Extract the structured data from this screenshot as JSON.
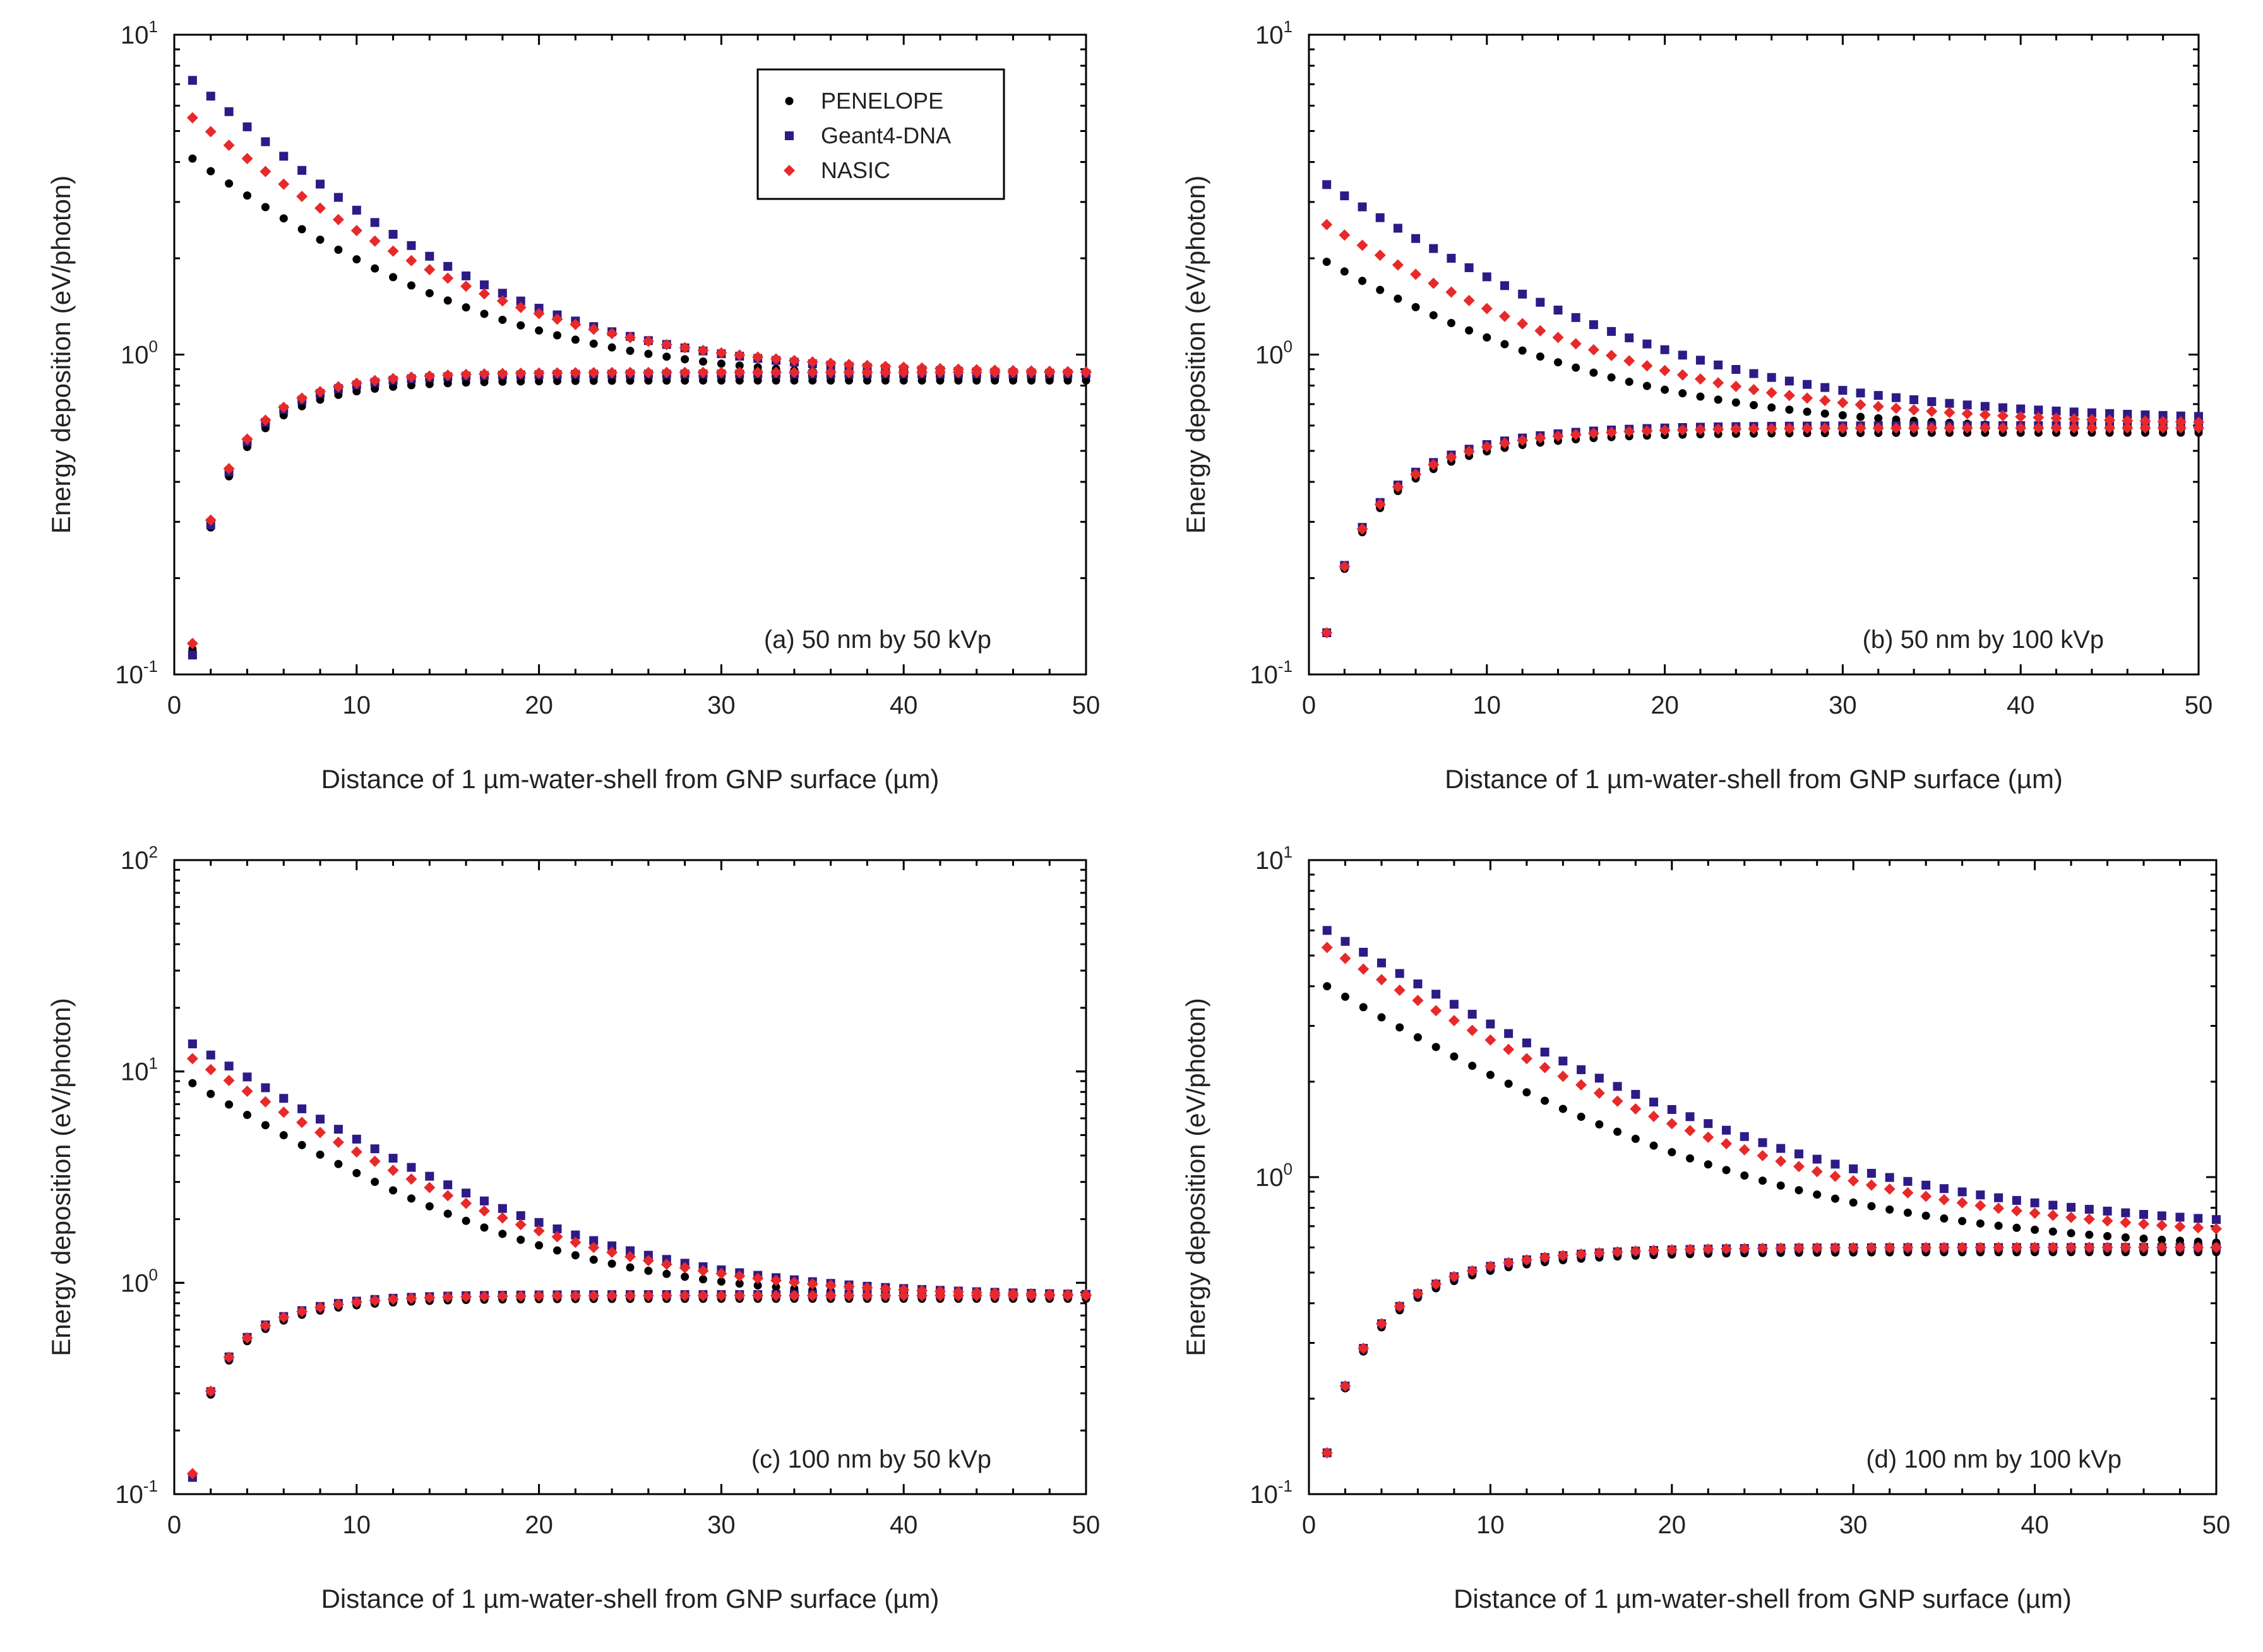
{
  "legend": [
    {
      "name": "PENELOPE",
      "color": "#000000",
      "marker": "circle"
    },
    {
      "name": "Geant4-DNA",
      "color": "#2e1a87",
      "marker": "square"
    },
    {
      "name": "NASIC",
      "color": "#e8292a",
      "marker": "diamond"
    }
  ],
  "chart_data": [
    {
      "type": "scatter",
      "panel_label": "(a) 50 nm by 50 kVp",
      "xlabel": "Distance of 1 µm-water-shell from GNP surface (µm)",
      "ylabel": "Energy deposition (eV/photon)",
      "xlim": [
        0,
        50
      ],
      "ylim": [
        0.1,
        10
      ],
      "yscale": "log",
      "xticks": [
        "0",
        "10",
        "20",
        "30",
        "40",
        "50"
      ],
      "yticks": [
        {
          "base": "10",
          "exp": "-1"
        },
        {
          "base": "10",
          "exp": "0"
        },
        {
          "base": "10",
          "exp": "1"
        }
      ],
      "series": [
        {
          "name": "PENELOPE",
          "group": "outer",
          "y0": 4.1,
          "y50": 0.82,
          "k": 0.115
        },
        {
          "name": "Geant4-DNA",
          "group": "outer",
          "y0": 7.2,
          "y50": 0.86,
          "k": 0.13
        },
        {
          "name": "NASIC",
          "group": "outer",
          "y0": 5.5,
          "y50": 0.87,
          "k": 0.12
        },
        {
          "name": "PENELOPE",
          "group": "inner",
          "y0": 0.12,
          "y50": 0.83,
          "k": 0.27
        },
        {
          "name": "Geant4-DNA",
          "group": "inner",
          "y0": 0.115,
          "y50": 0.87,
          "k": 0.27
        },
        {
          "name": "NASIC",
          "group": "inner",
          "y0": 0.125,
          "y50": 0.88,
          "k": 0.27
        }
      ],
      "show_legend": true
    },
    {
      "type": "scatter",
      "panel_label": "(b) 50 nm by 100 kVp",
      "xlabel": "Distance of 1 µm-water-shell from GNP surface (µm)",
      "ylabel": "Energy deposition (eV/photon)",
      "xlim": [
        0,
        50
      ],
      "ylim": [
        0.1,
        10
      ],
      "yscale": "log",
      "xticks": [
        "0",
        "10",
        "20",
        "30",
        "40",
        "50"
      ],
      "yticks": [
        {
          "base": "10",
          "exp": "-1"
        },
        {
          "base": "10",
          "exp": "0"
        },
        {
          "base": "10",
          "exp": "1"
        }
      ],
      "series": [
        {
          "name": "PENELOPE",
          "group": "outer",
          "y0": 1.95,
          "y50": 0.57,
          "k": 0.1
        },
        {
          "name": "Geant4-DNA",
          "group": "outer",
          "y0": 3.4,
          "y50": 0.62,
          "k": 0.1
        },
        {
          "name": "NASIC",
          "group": "outer",
          "y0": 2.55,
          "y50": 0.6,
          "k": 0.1
        },
        {
          "name": "PENELOPE",
          "group": "inner",
          "y0": 0.135,
          "y50": 0.57,
          "k": 0.2
        },
        {
          "name": "Geant4-DNA",
          "group": "inner",
          "y0": 0.135,
          "y50": 0.6,
          "k": 0.2
        },
        {
          "name": "NASIC",
          "group": "inner",
          "y0": 0.135,
          "y50": 0.59,
          "k": 0.2
        }
      ],
      "show_legend": false
    },
    {
      "type": "scatter",
      "panel_label": "(c) 100 nm by 50 kVp",
      "xlabel": "Distance of 1 µm-water-shell from GNP surface (µm)",
      "ylabel": "Energy deposition (eV/photon)",
      "xlim": [
        0,
        50
      ],
      "ylim": [
        0.1,
        100
      ],
      "yscale": "log",
      "xticks": [
        "0",
        "10",
        "20",
        "30",
        "40",
        "50"
      ],
      "yticks": [
        {
          "base": "10",
          "exp": "-1"
        },
        {
          "base": "10",
          "exp": "0"
        },
        {
          "base": "10",
          "exp": "1"
        },
        {
          "base": "10",
          "exp": "2"
        }
      ],
      "series": [
        {
          "name": "PENELOPE",
          "group": "outer",
          "y0": 8.8,
          "y50": 0.83,
          "k": 0.13
        },
        {
          "name": "Geant4-DNA",
          "group": "outer",
          "y0": 13.5,
          "y50": 0.86,
          "k": 0.13
        },
        {
          "name": "NASIC",
          "group": "outer",
          "y0": 11.5,
          "y50": 0.86,
          "k": 0.13
        },
        {
          "name": "PENELOPE",
          "group": "inner",
          "y0": 0.12,
          "y50": 0.84,
          "k": 0.28
        },
        {
          "name": "Geant4-DNA",
          "group": "inner",
          "y0": 0.12,
          "y50": 0.88,
          "k": 0.28
        },
        {
          "name": "NASIC",
          "group": "inner",
          "y0": 0.125,
          "y50": 0.87,
          "k": 0.28
        }
      ],
      "show_legend": false
    },
    {
      "type": "scatter",
      "panel_label": "(d) 100 nm by 100 kVp",
      "xlabel": "Distance of 1 µm-water-shell from GNP surface (µm)",
      "ylabel": "Energy deposition (eV/photon)",
      "xlim": [
        0,
        50
      ],
      "ylim": [
        0.1,
        10
      ],
      "yscale": "log",
      "xticks": [
        "0",
        "10",
        "20",
        "30",
        "40",
        "50"
      ],
      "yticks": [
        {
          "base": "10",
          "exp": "-1"
        },
        {
          "base": "10",
          "exp": "0"
        },
        {
          "base": "10",
          "exp": "1"
        }
      ],
      "series": [
        {
          "name": "PENELOPE",
          "group": "outer",
          "y0": 4.0,
          "y50": 0.58,
          "k": 0.09
        },
        {
          "name": "Geant4-DNA",
          "group": "outer",
          "y0": 6.0,
          "y50": 0.67,
          "k": 0.09
        },
        {
          "name": "NASIC",
          "group": "outer",
          "y0": 5.3,
          "y50": 0.63,
          "k": 0.09
        },
        {
          "name": "PENELOPE",
          "group": "inner",
          "y0": 0.135,
          "y50": 0.58,
          "k": 0.2
        },
        {
          "name": "Geant4-DNA",
          "group": "inner",
          "y0": 0.135,
          "y50": 0.6,
          "k": 0.2
        },
        {
          "name": "NASIC",
          "group": "inner",
          "y0": 0.135,
          "y50": 0.6,
          "k": 0.2
        }
      ],
      "show_legend": false
    }
  ]
}
